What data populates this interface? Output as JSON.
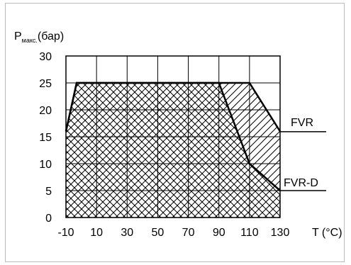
{
  "chart_data": {
    "type": "area",
    "ylabel_main": "P",
    "ylabel_sub": "макс.",
    "ylabel_unit": "(бар)",
    "xlabel": "T (°C)",
    "x_ticks": [
      "-10",
      "10",
      "30",
      "50",
      "70",
      "90",
      "110",
      "130"
    ],
    "y_ticks": [
      "0",
      "5",
      "10",
      "15",
      "20",
      "25",
      "30"
    ],
    "xlim": [
      -10,
      130
    ],
    "ylim": [
      0,
      30
    ],
    "grid": true,
    "series": [
      {
        "name": "FVR",
        "x": [
          -10,
          -3,
          90,
          110,
          130
        ],
        "y": [
          16,
          25,
          25,
          25,
          16
        ]
      },
      {
        "name": "FVR-D",
        "x": [
          -10,
          -3,
          90,
          110,
          130
        ],
        "y": [
          16,
          25,
          25,
          10,
          5
        ]
      }
    ]
  }
}
